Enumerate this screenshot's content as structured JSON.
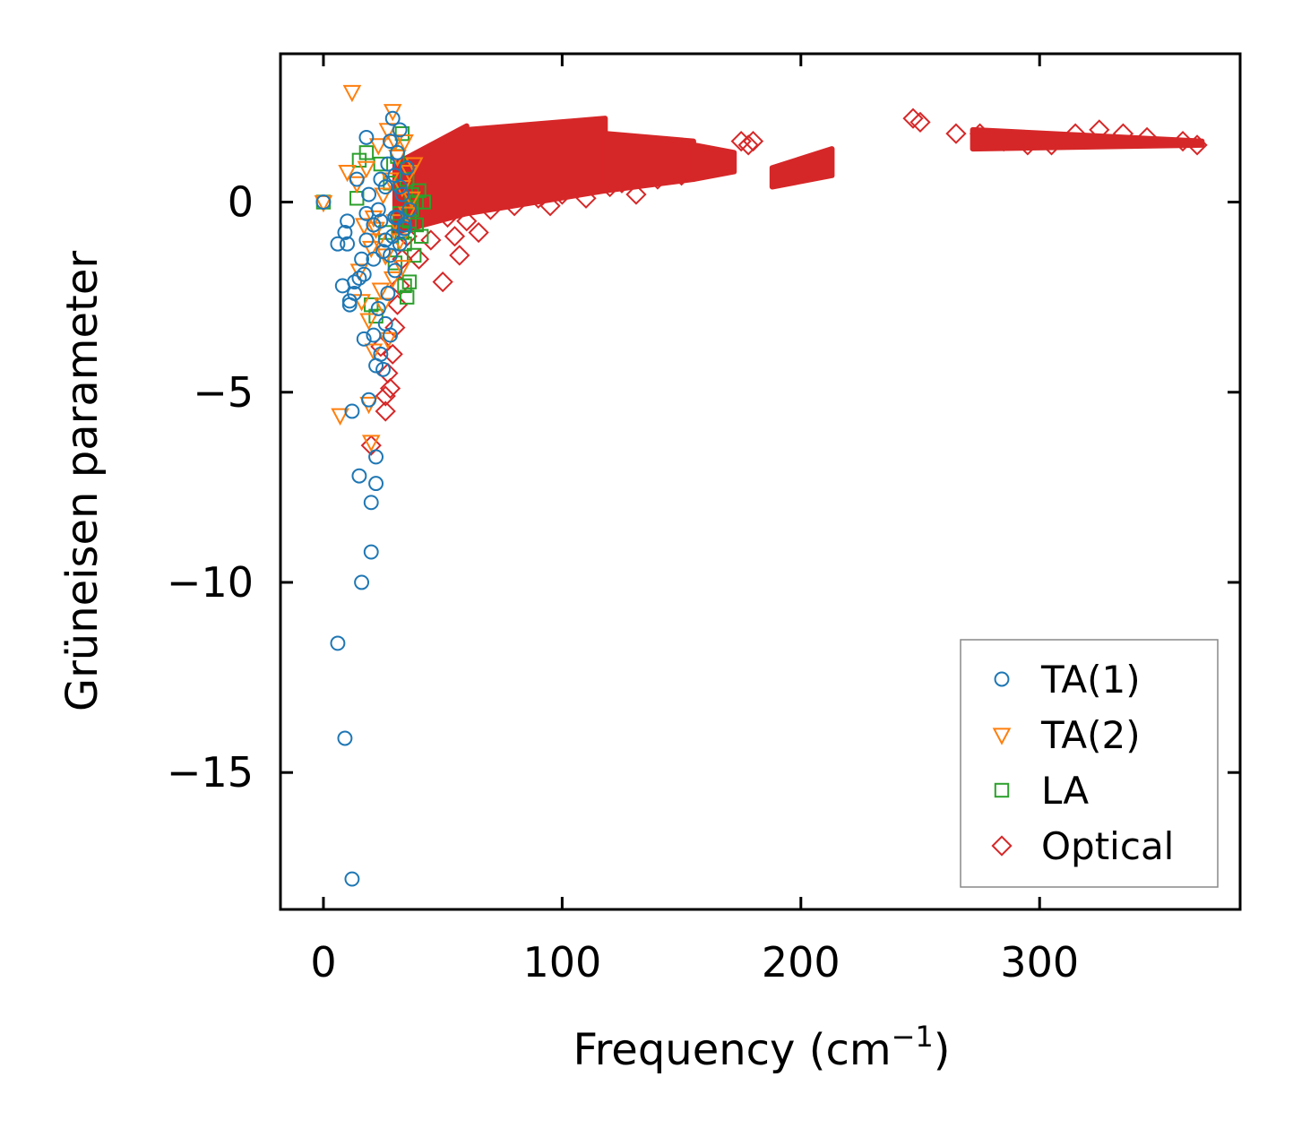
{
  "chart_data": {
    "type": "scatter",
    "title": "",
    "xlabel": "Frequency (cm",
    "xlabel_sup": "−1",
    "xlabel_close": ")",
    "ylabel": "Grüneisen parameter",
    "xlim": [
      -18,
      384
    ],
    "ylim": [
      -18.6,
      3.9
    ],
    "xticks": [
      0,
      100,
      200,
      300
    ],
    "xtick_labels": [
      "0",
      "100",
      "200",
      "300"
    ],
    "yticks": [
      0,
      -5,
      -10,
      -15
    ],
    "ytick_labels": [
      "0",
      "−5",
      "−10",
      "−15"
    ],
    "grid": false,
    "legend_position": "lower-right",
    "series": [
      {
        "name": "TA(1)",
        "marker": "circle",
        "color": "#1f77b4",
        "points": [
          [
            0,
            0
          ],
          [
            6,
            -1.1
          ],
          [
            8,
            -2.2
          ],
          [
            9,
            -0.8
          ],
          [
            10,
            -0.5
          ],
          [
            10,
            -1.1
          ],
          [
            11,
            -2.6
          ],
          [
            12,
            -5.5
          ],
          [
            13,
            -2.1
          ],
          [
            14,
            0.6
          ],
          [
            15,
            -2.0
          ],
          [
            15,
            -7.2
          ],
          [
            16,
            -10.0
          ],
          [
            17,
            -3.6
          ],
          [
            17,
            -1.9
          ],
          [
            18,
            -0.3
          ],
          [
            18,
            1.7
          ],
          [
            19,
            -5.2
          ],
          [
            20,
            -9.2
          ],
          [
            20,
            -7.9
          ],
          [
            21,
            -3.5
          ],
          [
            21,
            -0.6
          ],
          [
            22,
            -7.4
          ],
          [
            22,
            -6.7
          ],
          [
            22,
            -4.3
          ],
          [
            23,
            -2.8
          ],
          [
            24,
            -4.0
          ],
          [
            24,
            -0.5
          ],
          [
            25,
            -4.4
          ],
          [
            25,
            -1.3
          ],
          [
            26,
            -3.2
          ],
          [
            26,
            0.4
          ],
          [
            27,
            -2.4
          ],
          [
            27,
            1.0
          ],
          [
            28,
            -3.5
          ],
          [
            28,
            1.6
          ],
          [
            29,
            -0.9
          ],
          [
            29,
            2.2
          ],
          [
            30,
            -1.8
          ],
          [
            30,
            0.7
          ],
          [
            31,
            -0.4
          ],
          [
            31,
            1.3
          ],
          [
            32,
            -1.1
          ],
          [
            32,
            1.9
          ],
          [
            33,
            0.2
          ],
          [
            34,
            -0.7
          ],
          [
            35,
            0.9
          ],
          [
            36,
            -0.2
          ],
          [
            6,
            -11.6
          ],
          [
            9,
            -14.1
          ],
          [
            12,
            -17.8
          ],
          [
            11,
            -2.7
          ],
          [
            13,
            -2.4
          ],
          [
            16,
            -1.5
          ],
          [
            18,
            -1.0
          ],
          [
            19,
            0.2
          ],
          [
            21,
            -1.5
          ],
          [
            23,
            -0.2
          ],
          [
            24,
            0.6
          ],
          [
            26,
            -1.0
          ],
          [
            28,
            -1.4
          ],
          [
            30,
            -0.4
          ],
          [
            32,
            0.4
          ],
          [
            34,
            -0.6
          ]
        ]
      },
      {
        "name": "TA(2)",
        "marker": "triangle-down",
        "color": "#ff7f0e",
        "points": [
          [
            0,
            0
          ],
          [
            7,
            -5.6
          ],
          [
            10,
            0.8
          ],
          [
            12,
            2.9
          ],
          [
            14,
            0.5
          ],
          [
            15,
            -1.8
          ],
          [
            16,
            -2.6
          ],
          [
            17,
            -0.6
          ],
          [
            18,
            0.9
          ],
          [
            19,
            -3.1
          ],
          [
            19,
            -5.3
          ],
          [
            20,
            -6.3
          ],
          [
            20,
            -1.2
          ],
          [
            21,
            -3.9
          ],
          [
            22,
            -0.7
          ],
          [
            23,
            1.5
          ],
          [
            24,
            -2.3
          ],
          [
            25,
            0.2
          ],
          [
            26,
            -1.4
          ],
          [
            27,
            1.9
          ],
          [
            27,
            -3.6
          ],
          [
            28,
            0.6
          ],
          [
            29,
            2.4
          ],
          [
            29,
            -2.0
          ],
          [
            30,
            -0.5
          ],
          [
            31,
            1.2
          ],
          [
            32,
            -1.0
          ],
          [
            33,
            0.4
          ],
          [
            34,
            1.6
          ],
          [
            35,
            -0.3
          ],
          [
            36,
            0.8
          ],
          [
            37,
            0.1
          ],
          [
            38,
            1.0
          ],
          [
            25,
            -2.7
          ],
          [
            23,
            -1.0
          ],
          [
            21,
            -0.4
          ],
          [
            33,
            -1.7
          ],
          [
            30,
            1.6
          ]
        ]
      },
      {
        "name": "LA",
        "marker": "square",
        "color": "#2ca02c",
        "points": [
          [
            0,
            0
          ],
          [
            14,
            0.1
          ],
          [
            15,
            1.1
          ],
          [
            18,
            1.3
          ],
          [
            20,
            -2.7
          ],
          [
            22,
            -3.0
          ],
          [
            24,
            1.0
          ],
          [
            26,
            -0.8
          ],
          [
            28,
            0.5
          ],
          [
            30,
            -1.6
          ],
          [
            31,
            1.2
          ],
          [
            32,
            -0.3
          ],
          [
            33,
            1.8
          ],
          [
            34,
            -1.1
          ],
          [
            35,
            0.6
          ],
          [
            35,
            -2.5
          ],
          [
            36,
            -0.5
          ],
          [
            37,
            0.2
          ],
          [
            38,
            -1.4
          ],
          [
            39,
            0.0
          ],
          [
            40,
            0.3
          ],
          [
            41,
            -0.9
          ],
          [
            42,
            0.0
          ],
          [
            36,
            -2.1
          ],
          [
            34,
            -2.2
          ],
          [
            37,
            -0.2
          ],
          [
            39,
            -0.6
          ],
          [
            33,
            -0.8
          ]
        ]
      },
      {
        "name": "Optical",
        "marker": "diamond",
        "color": "#d62728",
        "points": [
          [
            20,
            -6.4
          ],
          [
            24,
            -3.8
          ],
          [
            26,
            -5.5
          ],
          [
            26,
            -5.1
          ],
          [
            27,
            -4.5
          ],
          [
            28,
            -4.9
          ],
          [
            29,
            -4.0
          ],
          [
            30,
            -3.3
          ],
          [
            31,
            -2.7
          ],
          [
            32,
            -2.2
          ],
          [
            33,
            -1.5
          ],
          [
            35,
            -0.9
          ],
          [
            40,
            -1.5
          ],
          [
            45,
            -1.0
          ],
          [
            50,
            -2.1
          ],
          [
            52,
            -0.4
          ],
          [
            55,
            -0.9
          ],
          [
            57,
            -1.4
          ],
          [
            60,
            -0.5
          ],
          [
            65,
            -0.8
          ],
          [
            70,
            -0.2
          ],
          [
            80,
            -0.1
          ],
          [
            90,
            0.1
          ],
          [
            95,
            -0.1
          ],
          [
            100,
            0.2
          ],
          [
            110,
            0.1
          ],
          [
            120,
            0.4
          ],
          [
            125,
            0.5
          ],
          [
            131,
            0.2
          ],
          [
            140,
            0.6
          ],
          [
            150,
            0.7
          ],
          [
            160,
            1.0
          ],
          [
            175,
            1.6
          ],
          [
            178,
            1.5
          ],
          [
            180,
            1.6
          ],
          [
            247,
            2.2
          ],
          [
            250,
            2.1
          ],
          [
            265,
            1.8
          ],
          [
            275,
            1.8
          ],
          [
            285,
            1.6
          ],
          [
            295,
            1.5
          ],
          [
            305,
            1.5
          ],
          [
            315,
            1.8
          ],
          [
            325,
            1.9
          ],
          [
            335,
            1.8
          ],
          [
            345,
            1.7
          ],
          [
            360,
            1.6
          ],
          [
            366,
            1.5
          ]
        ]
      }
    ],
    "optical_bands": [
      {
        "x_range": [
          30,
          60
        ],
        "y_low": [
          -0.8,
          -0.3
        ],
        "y_high": [
          1.0,
          2.0
        ]
      },
      {
        "x_range": [
          60,
          118
        ],
        "y_low": [
          -0.3,
          0.3
        ],
        "y_high": [
          1.9,
          2.2
        ]
      },
      {
        "x_range": [
          118,
          155
        ],
        "y_low": [
          0.3,
          0.6
        ],
        "y_high": [
          1.8,
          1.6
        ]
      },
      {
        "x_range": [
          155,
          172
        ],
        "y_low": [
          0.6,
          0.8
        ],
        "y_high": [
          1.5,
          1.3
        ]
      },
      {
        "x_range": [
          188,
          213
        ],
        "y_low": [
          0.4,
          0.7
        ],
        "y_high": [
          0.9,
          1.4
        ]
      },
      {
        "x_range": [
          272,
          368
        ],
        "y_low": [
          1.4,
          1.5
        ],
        "y_high": [
          1.9,
          1.6
        ]
      }
    ]
  }
}
